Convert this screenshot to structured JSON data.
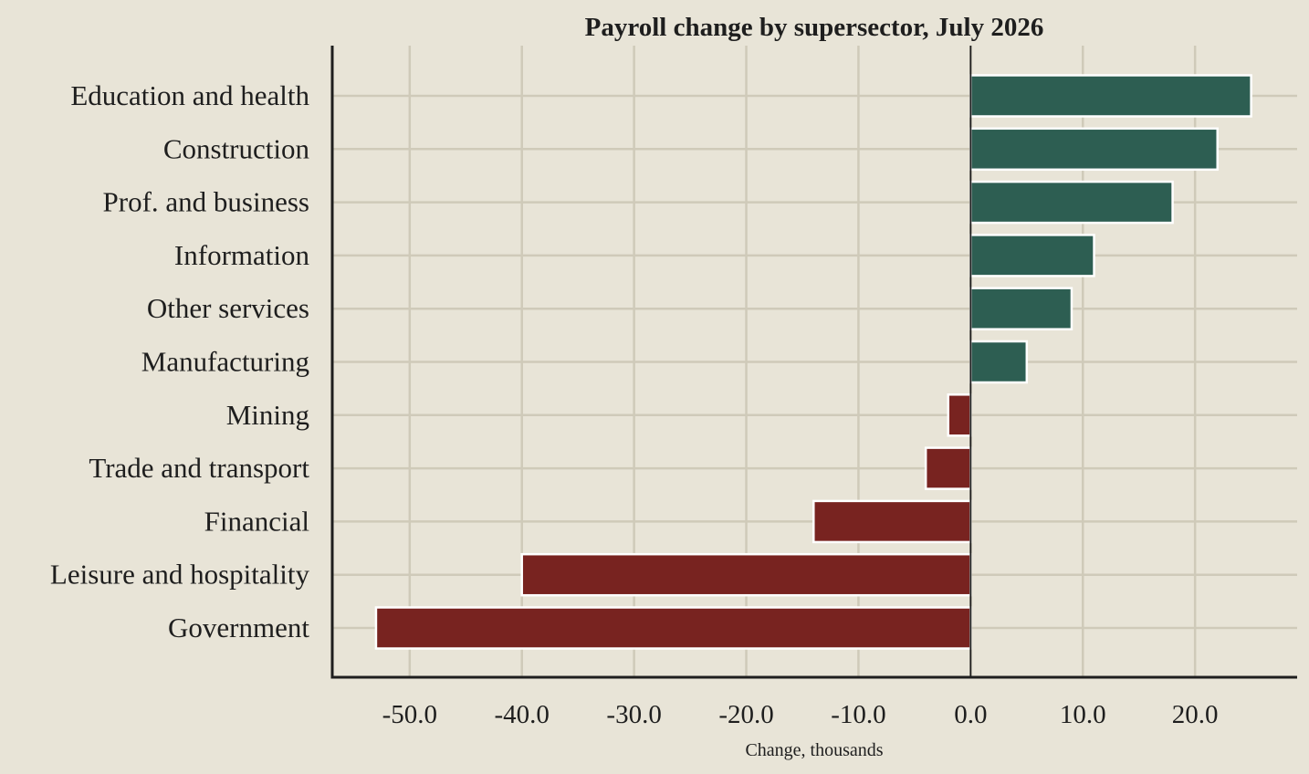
{
  "chart_data": {
    "type": "bar",
    "orientation": "horizontal",
    "title": "Payroll change by supersector, July 2026",
    "xlabel": "Change, thousands",
    "ylabel": "",
    "categories": [
      "Education and health",
      "Construction",
      "Prof. and business",
      "Information",
      "Other services",
      "Manufacturing",
      "Mining",
      "Trade and transport",
      "Financial",
      "Leisure and hospitality",
      "Government"
    ],
    "values": [
      25,
      22,
      18,
      11,
      9,
      5,
      -2,
      -4,
      -14,
      -40,
      -53
    ],
    "xlim": [
      -56.9,
      29.1
    ],
    "xticks": [
      -50,
      -40,
      -30,
      -20,
      -10,
      0,
      10,
      20
    ],
    "xtick_labels": [
      "-50.0",
      "-40.0",
      "-30.0",
      "-20.0",
      "-10.0",
      "0.0",
      "10.0",
      "20.0"
    ],
    "grid": true,
    "colors": {
      "positive": "#2d5e52",
      "negative": "#782320",
      "background": "#e8e4d7",
      "grid": "#cfcab9",
      "axis": "#1e1e1e"
    }
  }
}
